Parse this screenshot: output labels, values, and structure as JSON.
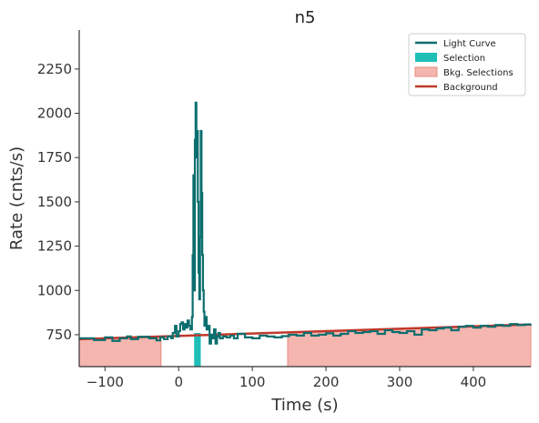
{
  "chart_data": {
    "type": "line",
    "title": "n5",
    "xlabel": "Time (s)",
    "ylabel": "Rate (cnts/s)",
    "xlim": [
      -135,
      478
    ],
    "ylim": [
      570,
      2470
    ],
    "xticks": [
      -100,
      0,
      100,
      200,
      300,
      400
    ],
    "xtick_labels": [
      "−100",
      "0",
      "100",
      "200",
      "300",
      "400"
    ],
    "yticks": [
      750,
      1000,
      1250,
      1500,
      1750,
      2000,
      2250
    ],
    "ytick_labels": [
      "750",
      "1000",
      "1250",
      "1500",
      "1750",
      "2000",
      "2250"
    ],
    "grid": false,
    "legend_position": "top-right",
    "legend": [
      {
        "label": "Light Curve",
        "kind": "line",
        "color": "#0b6e6e"
      },
      {
        "label": "Selection",
        "kind": "patch",
        "color": "#1fbfb8"
      },
      {
        "label": "Bkg. Selections",
        "kind": "patch",
        "color": "#f4b6af"
      },
      {
        "label": "Background",
        "kind": "line",
        "color": "#c0392b"
      }
    ],
    "colors": {
      "light_curve": "#0b6e6e",
      "selection": "#1fbfb8",
      "bkg_fill": "#f4b6af",
      "bkg_edge": "#e8897f",
      "background": "#c0392b"
    },
    "selection": {
      "start": 21,
      "end": 30
    },
    "bkg_selections": [
      [
        -135,
        -24
      ],
      [
        148,
        478
      ]
    ],
    "background_line": {
      "x": [
        -135,
        478
      ],
      "y": [
        725,
        808
      ]
    },
    "light_curve": {
      "x": [
        -135,
        -115,
        -100,
        -90,
        -80,
        -70,
        -65,
        -55,
        -40,
        -30,
        -25,
        -20,
        -15,
        -10,
        -8,
        -5,
        -3,
        0,
        2,
        4,
        6,
        8,
        10,
        12,
        14,
        16,
        18,
        19,
        20,
        21,
        22,
        23,
        24,
        25,
        26,
        27,
        28,
        29,
        30,
        31,
        32,
        33,
        34,
        35,
        36,
        38,
        40,
        42,
        44,
        46,
        48,
        50,
        52,
        54,
        56,
        60,
        65,
        70,
        75,
        80,
        90,
        100,
        110,
        120,
        130,
        140,
        150,
        160,
        170,
        180,
        190,
        200,
        210,
        220,
        230,
        240,
        250,
        260,
        270,
        280,
        290,
        300,
        310,
        320,
        330,
        340,
        350,
        360,
        370,
        380,
        390,
        400,
        410,
        420,
        430,
        440,
        450,
        460,
        470,
        478
      ],
      "y": [
        730,
        720,
        735,
        715,
        730,
        740,
        725,
        738,
        730,
        718,
        735,
        725,
        740,
        730,
        760,
        800,
        740,
        770,
        810,
        820,
        780,
        810,
        790,
        830,
        800,
        780,
        850,
        1200,
        1650,
        1000,
        1850,
        2060,
        1750,
        1900,
        1500,
        1100,
        950,
        1300,
        1900,
        1550,
        1200,
        1000,
        880,
        800,
        850,
        780,
        800,
        700,
        750,
        730,
        780,
        700,
        740,
        760,
        730,
        740,
        735,
        745,
        730,
        755,
        735,
        730,
        745,
        740,
        735,
        742,
        750,
        745,
        760,
        745,
        750,
        758,
        745,
        755,
        770,
        760,
        765,
        770,
        755,
        775,
        765,
        760,
        770,
        750,
        780,
        775,
        785,
        790,
        775,
        795,
        800,
        790,
        800,
        795,
        805,
        800,
        810,
        805,
        808,
        810
      ]
    }
  }
}
